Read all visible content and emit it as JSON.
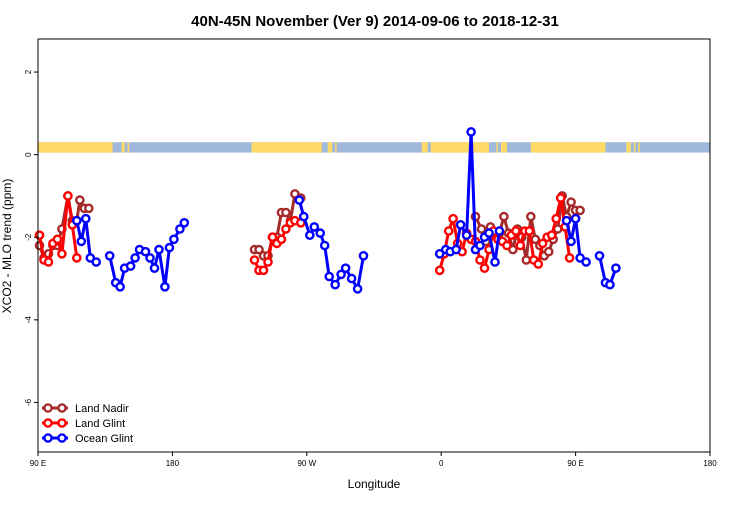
{
  "chart_data": {
    "type": "line",
    "title": "40N-45N November (Ver 9)   2014-09-06 to 2018-12-31",
    "xlabel": "Longitude",
    "ylabel": "XCO2 - MLO trend (ppm)",
    "xlim": [
      90,
      540
    ],
    "ylim": [
      -7.2,
      2.8
    ],
    "x_ticks": [
      {
        "value": 90,
        "label": "90 E"
      },
      {
        "value": 180,
        "label": "180"
      },
      {
        "value": 270,
        "label": "90 W"
      },
      {
        "value": 360,
        "label": "0"
      },
      {
        "value": 450,
        "label": "90 E"
      },
      {
        "value": 540,
        "label": "180"
      }
    ],
    "y_ticks": [
      {
        "value": 2,
        "label": "2"
      },
      {
        "value": 0,
        "label": "0"
      },
      {
        "value": -2,
        "label": "-2"
      },
      {
        "value": -4,
        "label": "-4"
      },
      {
        "value": -6,
        "label": "-6"
      }
    ],
    "legend_position": "bottom-left",
    "surface_band": {
      "y_range": [
        0.05,
        0.3
      ],
      "land_color": "#FFD966",
      "ocean_color": "#9FB8DB",
      "land_intervals": [
        [
          90,
          140
        ],
        [
          146,
          148
        ],
        [
          150,
          151
        ],
        [
          233,
          280
        ],
        [
          284,
          287
        ],
        [
          289,
          290
        ],
        [
          347,
          351
        ],
        [
          353,
          392
        ],
        [
          397,
          398
        ],
        [
          400,
          404
        ],
        [
          420,
          470
        ],
        [
          484,
          487
        ],
        [
          489,
          490
        ],
        [
          492,
          493
        ]
      ]
    },
    "series": [
      {
        "name": "Land Nadir",
        "color": "#A52A2A",
        "segments": [
          [
            [
              91,
              -2.2
            ],
            [
              94,
              -2.5
            ],
            [
              97,
              -2.4
            ],
            [
              100,
              -2.2
            ],
            [
              103,
              -2.2
            ],
            [
              106,
              -1.8
            ],
            [
              110,
              -1.0
            ],
            [
              113,
              -1.6
            ],
            [
              116,
              -1.6
            ],
            [
              118,
              -1.1
            ],
            [
              121,
              -1.3
            ],
            [
              124,
              -1.3
            ]
          ],
          [
            [
              235,
              -2.3
            ],
            [
              238,
              -2.3
            ],
            [
              241,
              -2.45
            ],
            [
              244,
              -2.45
            ],
            [
              247,
              -2.0
            ],
            [
              250,
              -2.0
            ],
            [
              253,
              -1.4
            ],
            [
              256,
              -1.4
            ],
            [
              259,
              -1.6
            ],
            [
              262,
              -0.95
            ],
            [
              266,
              -1.05
            ]
          ],
          [
            [
              383,
              -1.5
            ],
            [
              387,
              -1.8
            ],
            [
              390,
              -2.1
            ],
            [
              393,
              -1.75
            ],
            [
              396,
              -1.9
            ],
            [
              399,
              -1.9
            ],
            [
              402,
              -1.5
            ],
            [
              405,
              -1.9
            ],
            [
              408,
              -2.3
            ],
            [
              411,
              -1.8
            ],
            [
              414,
              -2.0
            ],
            [
              417,
              -2.55
            ],
            [
              420,
              -1.5
            ],
            [
              423,
              -2.05
            ],
            [
              426,
              -2.2
            ],
            [
              429,
              -2.45
            ],
            [
              432,
              -2.35
            ],
            [
              435,
              -2.05
            ],
            [
              438,
              -1.8
            ],
            [
              441,
              -1.0
            ],
            [
              444,
              -1.5
            ],
            [
              447,
              -1.15
            ],
            [
              450,
              -1.35
            ],
            [
              453,
              -1.35
            ]
          ]
        ]
      },
      {
        "name": "Land Glint",
        "color": "#FF0000",
        "segments": [
          [
            [
              91,
              -1.95
            ],
            [
              94,
              -2.55
            ],
            [
              97,
              -2.6
            ],
            [
              100,
              -2.15
            ],
            [
              103,
              -2.05
            ],
            [
              106,
              -2.4
            ],
            [
              110,
              -1.0
            ],
            [
              113,
              -1.7
            ],
            [
              116,
              -2.5
            ]
          ],
          [
            [
              235,
              -2.55
            ],
            [
              238,
              -2.8
            ],
            [
              241,
              -2.8
            ],
            [
              244,
              -2.6
            ],
            [
              247,
              -2.0
            ],
            [
              250,
              -2.15
            ],
            [
              253,
              -2.05
            ],
            [
              256,
              -1.8
            ],
            [
              259,
              -1.65
            ],
            [
              262,
              -1.6
            ],
            [
              266,
              -1.65
            ]
          ],
          [
            [
              359,
              -2.8
            ],
            [
              362,
              -2.4
            ],
            [
              365,
              -1.85
            ],
            [
              368,
              -1.55
            ],
            [
              371,
              -2.15
            ],
            [
              374,
              -2.35
            ],
            [
              377,
              -1.9
            ],
            [
              380,
              -2.05
            ],
            [
              383,
              -2.1
            ],
            [
              386,
              -2.55
            ],
            [
              389,
              -2.75
            ],
            [
              392,
              -2.3
            ],
            [
              395,
              -1.85
            ],
            [
              398,
              -2.05
            ],
            [
              401,
              -2.1
            ],
            [
              404,
              -2.2
            ],
            [
              407,
              -1.95
            ],
            [
              410,
              -1.85
            ],
            [
              413,
              -2.2
            ],
            [
              416,
              -1.85
            ],
            [
              419,
              -1.85
            ],
            [
              422,
              -2.55
            ],
            [
              425,
              -2.65
            ],
            [
              428,
              -2.15
            ],
            [
              431,
              -2.0
            ],
            [
              434,
              -1.95
            ],
            [
              437,
              -1.55
            ],
            [
              440,
              -1.05
            ],
            [
              443,
              -1.75
            ],
            [
              446,
              -2.5
            ]
          ]
        ]
      },
      {
        "name": "Ocean Glint",
        "color": "#0000FF",
        "segments": [
          [
            [
              116,
              -1.6
            ],
            [
              119,
              -2.1
            ],
            [
              122,
              -1.55
            ],
            [
              125,
              -2.5
            ],
            [
              129,
              -2.6
            ]
          ],
          [
            [
              138,
              -2.45
            ],
            [
              142,
              -3.1
            ],
            [
              145,
              -3.2
            ],
            [
              148,
              -2.75
            ],
            [
              152,
              -2.7
            ],
            [
              155,
              -2.5
            ],
            [
              158,
              -2.3
            ],
            [
              162,
              -2.35
            ],
            [
              165,
              -2.5
            ],
            [
              168,
              -2.75
            ],
            [
              171,
              -2.3
            ],
            [
              175,
              -3.2
            ],
            [
              178,
              -2.25
            ],
            [
              181,
              -2.05
            ],
            [
              185,
              -1.8
            ],
            [
              188,
              -1.65
            ]
          ],
          [
            [
              265,
              -1.1
            ],
            [
              268,
              -1.5
            ],
            [
              272,
              -1.95
            ],
            [
              275,
              -1.75
            ],
            [
              279,
              -1.9
            ],
            [
              282,
              -2.2
            ],
            [
              285,
              -2.95
            ],
            [
              289,
              -3.15
            ],
            [
              293,
              -2.9
            ],
            [
              296,
              -2.75
            ],
            [
              300,
              -3.0
            ],
            [
              304,
              -3.25
            ],
            [
              308,
              -2.45
            ]
          ],
          [
            [
              359,
              -2.4
            ],
            [
              363,
              -2.3
            ],
            [
              366,
              -2.35
            ],
            [
              370,
              -2.3
            ],
            [
              373,
              -1.7
            ],
            [
              377,
              -1.95
            ],
            [
              380,
              0.55
            ],
            [
              383,
              -2.3
            ],
            [
              386,
              -2.2
            ],
            [
              389,
              -2.0
            ],
            [
              392,
              -1.9
            ],
            [
              396,
              -2.6
            ],
            [
              399,
              -1.85
            ]
          ],
          [
            [
              444,
              -1.6
            ],
            [
              447,
              -2.1
            ],
            [
              450,
              -1.55
            ],
            [
              453,
              -2.5
            ],
            [
              457,
              -2.6
            ]
          ],
          [
            [
              466,
              -2.45
            ],
            [
              470,
              -3.1
            ],
            [
              473,
              -3.15
            ],
            [
              477,
              -2.75
            ]
          ]
        ]
      }
    ]
  }
}
